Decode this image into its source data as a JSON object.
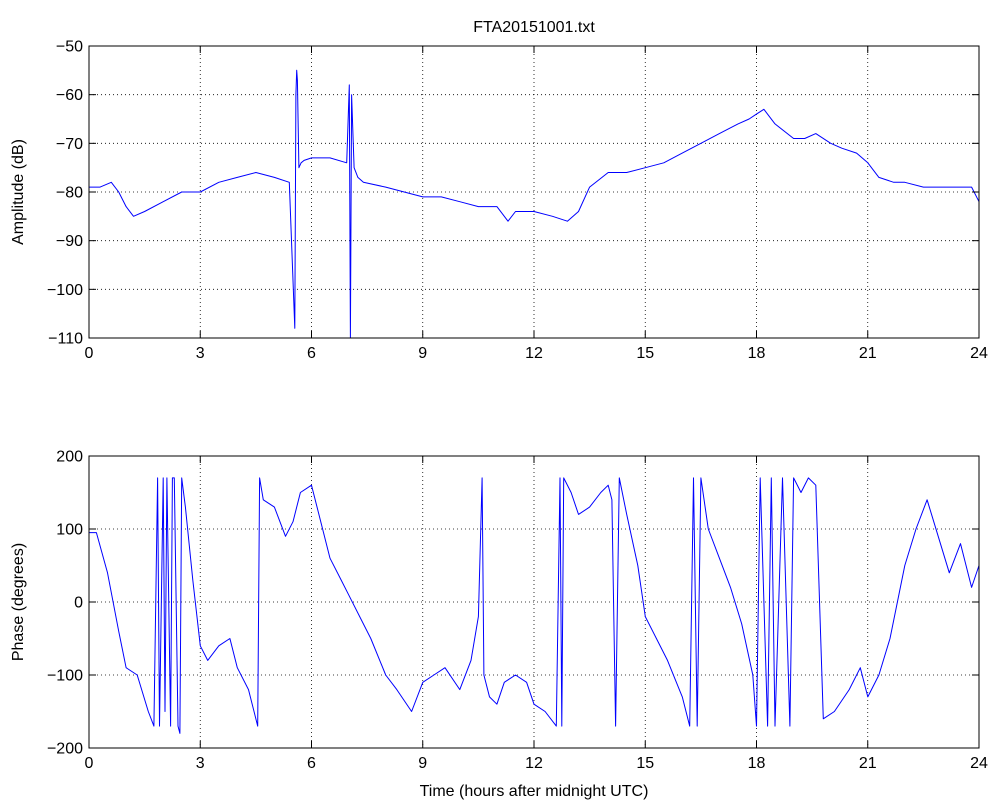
{
  "chart_data": [
    {
      "type": "line",
      "title": "FTA20151001.txt",
      "xlabel": "",
      "ylabel": "Amplitude (dB)",
      "xlim": [
        0,
        24
      ],
      "ylim": [
        -110,
        -50
      ],
      "xticks": [
        0,
        3,
        6,
        9,
        12,
        15,
        18,
        21,
        24
      ],
      "xtick_labels": [
        "0",
        "3",
        "6",
        "9",
        "12",
        "15",
        "18",
        "21",
        "24"
      ],
      "yticks": [
        -110,
        -100,
        -90,
        -80,
        -70,
        -60,
        -50
      ],
      "ytick_labels": [
        "−110",
        "−100",
        "−90",
        "−80",
        "−70",
        "−60",
        "−50"
      ],
      "grid": true,
      "series": [
        {
          "color": "#0000ff",
          "x": [
            0,
            0.3,
            0.6,
            0.8,
            1.0,
            1.2,
            1.5,
            2.0,
            2.5,
            3.0,
            3.5,
            4.0,
            4.5,
            5.0,
            5.4,
            5.55,
            5.58,
            5.6,
            5.62,
            5.66,
            5.72,
            5.8,
            6.0,
            6.5,
            6.95,
            7.02,
            7.05,
            7.08,
            7.15,
            7.25,
            7.4,
            8.0,
            8.5,
            9.0,
            9.5,
            10.0,
            10.5,
            11.0,
            11.3,
            11.5,
            12.0,
            12.5,
            12.9,
            13.2,
            13.5,
            14.0,
            14.5,
            15.0,
            15.5,
            16.0,
            16.5,
            17.0,
            17.5,
            17.8,
            18.0,
            18.2,
            18.5,
            19.0,
            19.3,
            19.6,
            20.0,
            20.3,
            20.7,
            21.0,
            21.3,
            21.7,
            22.0,
            22.5,
            23.0,
            23.5,
            23.8,
            24.0
          ],
          "y": [
            -79,
            -79,
            -78,
            -80,
            -83,
            -85,
            -84,
            -82,
            -80,
            -80,
            -78,
            -77,
            -76,
            -77,
            -78,
            -108,
            -60,
            -55,
            -57,
            -75,
            -74,
            -73.5,
            -73,
            -73,
            -74,
            -58,
            -110,
            -60,
            -75,
            -77,
            -78,
            -79,
            -80,
            -81,
            -81,
            -82,
            -83,
            -83,
            -86,
            -84,
            -84,
            -85,
            -86,
            -84,
            -79,
            -76,
            -76,
            -75,
            -74,
            -72,
            -70,
            -68,
            -66,
            -65,
            -64,
            -63,
            -66,
            -69,
            -69,
            -68,
            -70,
            -71,
            -72,
            -74,
            -77,
            -78,
            -78,
            -79,
            -79,
            -79,
            -79,
            -82
          ]
        }
      ]
    },
    {
      "type": "line",
      "title": "",
      "xlabel": "Time (hours after midnight UTC)",
      "ylabel": "Phase (degrees)",
      "xlim": [
        0,
        24
      ],
      "ylim": [
        -200,
        200
      ],
      "xticks": [
        0,
        3,
        6,
        9,
        12,
        15,
        18,
        21,
        24
      ],
      "xtick_labels": [
        "0",
        "3",
        "6",
        "9",
        "12",
        "15",
        "18",
        "21",
        "24"
      ],
      "yticks": [
        -200,
        -100,
        0,
        100,
        200
      ],
      "ytick_labels": [
        "−200",
        "−100",
        "0",
        "100",
        "200"
      ],
      "grid": true,
      "series": [
        {
          "color": "#0000ff",
          "x": [
            0,
            0.2,
            0.5,
            0.8,
            1.0,
            1.3,
            1.6,
            1.75,
            1.85,
            1.9,
            2.0,
            2.05,
            2.1,
            2.2,
            2.25,
            2.3,
            2.4,
            2.45,
            2.5,
            2.6,
            2.8,
            3.0,
            3.2,
            3.5,
            3.8,
            4.0,
            4.3,
            4.55,
            4.6,
            4.7,
            5.0,
            5.3,
            5.5,
            5.7,
            6.0,
            6.3,
            6.5,
            6.8,
            7.0,
            7.3,
            7.6,
            8.0,
            8.3,
            8.7,
            9.0,
            9.3,
            9.6,
            10.0,
            10.3,
            10.5,
            10.6,
            10.65,
            10.8,
            11.0,
            11.2,
            11.5,
            11.8,
            12.0,
            12.3,
            12.6,
            12.7,
            12.75,
            12.8,
            13.0,
            13.2,
            13.5,
            13.8,
            14.0,
            14.1,
            14.2,
            14.3,
            14.5,
            14.8,
            15.0,
            15.3,
            15.6,
            16.0,
            16.2,
            16.3,
            16.4,
            16.5,
            16.7,
            17.0,
            17.3,
            17.6,
            17.9,
            18.0,
            18.1,
            18.3,
            18.4,
            18.5,
            18.7,
            18.9,
            19.0,
            19.2,
            19.4,
            19.6,
            19.8,
            20.1,
            20.5,
            20.8,
            21.0,
            21.3,
            21.6,
            22.0,
            22.3,
            22.6,
            22.9,
            23.2,
            23.5,
            23.8,
            24.0
          ],
          "y": [
            95,
            95,
            40,
            -40,
            -90,
            -100,
            -150,
            -170,
            170,
            -170,
            170,
            -150,
            170,
            -170,
            170,
            170,
            -170,
            -180,
            170,
            130,
            30,
            -60,
            -80,
            -60,
            -50,
            -90,
            -120,
            -170,
            170,
            140,
            130,
            90,
            110,
            150,
            160,
            100,
            60,
            30,
            10,
            -20,
            -50,
            -100,
            -120,
            -150,
            -110,
            -100,
            -90,
            -120,
            -80,
            -20,
            170,
            -100,
            -130,
            -140,
            -110,
            -100,
            -110,
            -140,
            -150,
            -170,
            170,
            -170,
            170,
            150,
            120,
            130,
            150,
            160,
            140,
            -170,
            170,
            120,
            50,
            -20,
            -50,
            -80,
            -130,
            -170,
            170,
            -170,
            170,
            100,
            60,
            20,
            -30,
            -100,
            -170,
            170,
            -170,
            170,
            -170,
            170,
            -170,
            170,
            150,
            170,
            160,
            -160,
            -150,
            -120,
            -90,
            -130,
            -100,
            -50,
            50,
            100,
            140,
            90,
            40,
            80,
            20,
            50
          ]
        }
      ]
    }
  ]
}
